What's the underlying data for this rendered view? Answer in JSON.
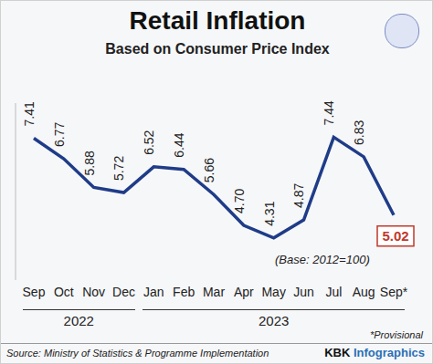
{
  "chart_data": {
    "type": "line",
    "title": "Retail Inflation",
    "subtitle": "Based on Consumer Price Index",
    "categories": [
      "Sep",
      "Oct",
      "Nov",
      "Dec",
      "Jan",
      "Feb",
      "Mar",
      "Apr",
      "May",
      "Jun",
      "Jul",
      "Aug",
      "Sep*"
    ],
    "years": [
      "2022",
      "2022",
      "2022",
      "2022",
      "2023",
      "2023",
      "2023",
      "2023",
      "2023",
      "2023",
      "2023",
      "2023",
      "2023"
    ],
    "values": [
      7.41,
      6.77,
      5.88,
      5.72,
      6.52,
      6.44,
      5.66,
      4.7,
      4.31,
      4.87,
      7.44,
      6.83,
      5.02
    ],
    "value_labels": [
      "7.41",
      "6.77",
      "5.88",
      "5.72",
      "6.52",
      "6.44",
      "5.66",
      "4.70",
      "4.31",
      "4.87",
      "7.44",
      "6.83",
      "5.02"
    ],
    "color": "#1f3c88",
    "ylim": [
      3,
      8.5
    ],
    "grid": false,
    "data_labels": true,
    "tick_labels": "x",
    "marker": "none",
    "annotations": [
      "(Base: 2012=100)",
      "*Provisional"
    ],
    "source": "Source: Ministry of Statistics & Programme Implementation",
    "credit": "KBK Infographics"
  }
}
